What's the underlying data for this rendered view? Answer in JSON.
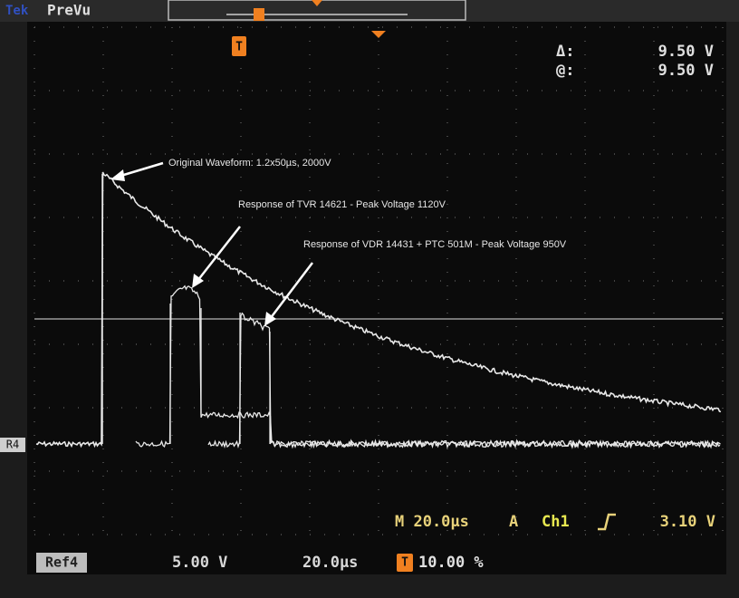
{
  "header": {
    "brand": "Tek",
    "mode": "PreVu",
    "trigger_marker": "T"
  },
  "cursor": {
    "delta_label": "Δ:",
    "delta_value": "9.50 V",
    "at_label": "@:",
    "at_value": "9.50 V"
  },
  "annotations": [
    "Original Waveform: 1.2x50µs, 2000V",
    "Response of TVR 14621 - Peak Voltage 1120V",
    "Response of VDR 14431 + PTC 501M - Peak Voltage 950V"
  ],
  "ref_marker": "R4",
  "readout": {
    "timebase": "M 20.0µs",
    "trigger_mode": "A",
    "source": "Ch1",
    "level": "3.10 V",
    "ref": "Ref4",
    "ref_scale": "5.00 V",
    "ref_time": "20.0µs",
    "trigger_marker": "T",
    "trigger_pos": "10.00 %"
  }
}
